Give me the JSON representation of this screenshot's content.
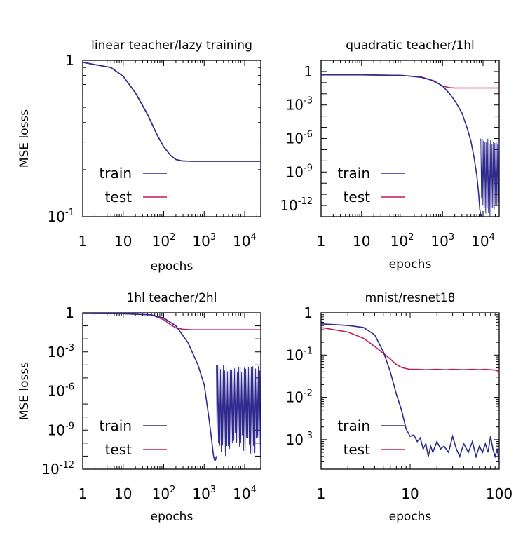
{
  "chart_data": [
    {
      "type": "line",
      "title": "linear teacher/lazy training",
      "xlabel": "epochs",
      "ylabel": "MSE losss",
      "xscale": "log",
      "yscale": "log",
      "xlim": [
        1,
        25000
      ],
      "ylim": [
        0.1,
        1
      ],
      "xticks": [
        {
          "v": 1,
          "base": "1",
          "exp": ""
        },
        {
          "v": 10,
          "base": "10",
          "exp": ""
        },
        {
          "v": 100,
          "base": "10",
          "exp": "2"
        },
        {
          "v": 1000,
          "base": "10",
          "exp": "3"
        },
        {
          "v": 10000,
          "base": "10",
          "exp": "4"
        }
      ],
      "yticks": [
        {
          "v": 1,
          "base": "1",
          "exp": ""
        },
        {
          "v": 0.1,
          "base": "10",
          "exp": "-1"
        }
      ],
      "legend": {
        "position": "bottom-left",
        "entries": [
          "train",
          "test"
        ]
      },
      "series": [
        {
          "name": "train",
          "color": "#2e2a8e",
          "x": [
            1,
            5,
            10,
            20,
            40,
            70,
            100,
            150,
            200,
            300,
            500,
            1000,
            10000,
            25000
          ],
          "y": [
            0.97,
            0.9,
            0.79,
            0.62,
            0.45,
            0.33,
            0.28,
            0.245,
            0.232,
            0.227,
            0.226,
            0.226,
            0.226,
            0.226
          ]
        },
        {
          "name": "test",
          "color": "#c01c5e",
          "x": [
            1,
            5,
            10,
            20,
            40,
            70,
            100,
            150,
            200,
            300,
            500,
            1000,
            10000,
            25000
          ],
          "y": [
            0.97,
            0.9,
            0.79,
            0.62,
            0.45,
            0.33,
            0.28,
            0.245,
            0.232,
            0.227,
            0.226,
            0.226,
            0.226,
            0.226
          ]
        }
      ]
    },
    {
      "type": "line",
      "title": "quadratic teacher/1hl",
      "xlabel": "epochs",
      "ylabel": "",
      "xscale": "log",
      "yscale": "log",
      "xlim": [
        1,
        25000
      ],
      "ylim": [
        1e-13,
        10
      ],
      "xticks": [
        {
          "v": 1,
          "base": "1",
          "exp": ""
        },
        {
          "v": 10,
          "base": "10",
          "exp": ""
        },
        {
          "v": 100,
          "base": "10",
          "exp": "2"
        },
        {
          "v": 1000,
          "base": "10",
          "exp": "3"
        },
        {
          "v": 10000,
          "base": "10",
          "exp": "4"
        }
      ],
      "yticks": [
        {
          "v": 1,
          "base": "1",
          "exp": ""
        },
        {
          "v": 0.001,
          "base": "10",
          "exp": "-3"
        },
        {
          "v": 1e-06,
          "base": "10",
          "exp": "-6"
        },
        {
          "v": 1e-09,
          "base": "10",
          "exp": "-9"
        },
        {
          "v": 1e-12,
          "base": "10",
          "exp": "-12"
        }
      ],
      "legend": {
        "position": "bottom-left",
        "entries": [
          "train",
          "test"
        ]
      },
      "series": [
        {
          "name": "train",
          "color": "#2e2a8e",
          "x": [
            1,
            10,
            100,
            300,
            600,
            1000,
            1500,
            2000,
            3000,
            4000,
            5000,
            6000,
            7000,
            7800,
            8300,
            8800
          ],
          "y": [
            0.5,
            0.5,
            0.45,
            0.3,
            0.15,
            0.05,
            0.01,
            0.0025,
            0.0002,
            1e-05,
            6e-07,
            2e-08,
            5e-10,
            1e-11,
            5e-13,
            1e-13
          ]
        },
        {
          "name": "test",
          "color": "#c01c5e",
          "x": [
            1,
            10,
            100,
            300,
            500,
            800,
            1000,
            1500,
            2000,
            3000,
            5000,
            10000,
            25000
          ],
          "y": [
            0.5,
            0.5,
            0.45,
            0.32,
            0.18,
            0.08,
            0.05,
            0.035,
            0.033,
            0.033,
            0.033,
            0.033,
            0.033
          ]
        }
      ],
      "oscillation": {
        "series": "train",
        "x_start": 8800,
        "x_end": 25000,
        "y_low": 1e-13,
        "y_high": 1e-06
      }
    },
    {
      "type": "line",
      "title": "1hl teacher/2hl",
      "xlabel": "epochs",
      "ylabel": "MSE losss",
      "xscale": "log",
      "yscale": "log",
      "xlim": [
        1,
        25000
      ],
      "ylim": [
        1e-12,
        1
      ],
      "xticks": [
        {
          "v": 1,
          "base": "1",
          "exp": ""
        },
        {
          "v": 10,
          "base": "10",
          "exp": ""
        },
        {
          "v": 100,
          "base": "10",
          "exp": "2"
        },
        {
          "v": 1000,
          "base": "10",
          "exp": "3"
        },
        {
          "v": 10000,
          "base": "10",
          "exp": "4"
        }
      ],
      "yticks": [
        {
          "v": 1,
          "base": "1",
          "exp": ""
        },
        {
          "v": 0.001,
          "base": "10",
          "exp": "-3"
        },
        {
          "v": 1e-06,
          "base": "10",
          "exp": "-6"
        },
        {
          "v": 1e-09,
          "base": "10",
          "exp": "-9"
        },
        {
          "v": 1e-12,
          "base": "10",
          "exp": "-12"
        }
      ],
      "legend": {
        "position": "bottom-left",
        "entries": [
          "train",
          "test"
        ]
      },
      "series": [
        {
          "name": "train",
          "color": "#2e2a8e",
          "x": [
            1,
            10,
            50,
            100,
            200,
            400,
            700,
            1000,
            1300,
            1500,
            1700,
            1800,
            1900,
            2000
          ],
          "y": [
            0.9,
            0.85,
            0.7,
            0.4,
            0.1,
            0.005,
            0.0001,
            3e-06,
            1e-08,
            3e-10,
            1e-11,
            5e-12,
            5e-12,
            1e-11
          ]
        },
        {
          "name": "test",
          "color": "#c01c5e",
          "x": [
            1,
            10,
            50,
            100,
            150,
            200,
            300,
            500,
            1000,
            10000,
            25000
          ],
          "y": [
            0.9,
            0.85,
            0.7,
            0.3,
            0.12,
            0.07,
            0.055,
            0.05,
            0.05,
            0.05,
            0.05
          ]
        }
      ],
      "oscillation": {
        "series": "train",
        "x_start": 2000,
        "x_end": 25000,
        "y_low": 1e-11,
        "y_high": 0.0001
      }
    },
    {
      "type": "line",
      "title": "mnist/resnet18",
      "xlabel": "epochs",
      "ylabel": "",
      "xscale": "log",
      "yscale": "log",
      "xlim": [
        1,
        100
      ],
      "ylim": [
        0.0002,
        1
      ],
      "xticks": [
        {
          "v": 1,
          "base": "1",
          "exp": ""
        },
        {
          "v": 10,
          "base": "10",
          "exp": ""
        },
        {
          "v": 100,
          "base": "100",
          "exp": ""
        }
      ],
      "yticks": [
        {
          "v": 1,
          "base": "1",
          "exp": ""
        },
        {
          "v": 0.1,
          "base": "10",
          "exp": "-1"
        },
        {
          "v": 0.01,
          "base": "10",
          "exp": "-2"
        },
        {
          "v": 0.001,
          "base": "10",
          "exp": "-3"
        }
      ],
      "legend": {
        "position": "bottom-left",
        "entries": [
          "train",
          "test"
        ]
      },
      "series": [
        {
          "name": "train",
          "color": "#2e2a8e",
          "x": [
            1,
            2,
            3,
            4,
            5,
            6,
            7,
            8,
            9,
            10,
            11,
            12,
            13,
            14,
            15,
            16,
            17,
            18,
            20,
            22,
            24,
            27,
            30,
            33,
            36,
            40,
            45,
            50,
            55,
            60,
            65,
            70,
            75,
            80,
            85,
            90,
            95,
            100
          ],
          "y": [
            0.55,
            0.5,
            0.45,
            0.3,
            0.12,
            0.04,
            0.012,
            0.005,
            0.0018,
            0.0012,
            0.0013,
            0.0009,
            0.0011,
            0.0006,
            0.0008,
            0.0004,
            0.0007,
            0.0005,
            0.0009,
            0.0006,
            0.0007,
            0.0005,
            0.0012,
            0.0006,
            0.0004,
            0.0008,
            0.0005,
            0.0009,
            0.0004,
            0.0007,
            0.0005,
            0.0008,
            0.0005,
            0.0012,
            0.0006,
            0.0004,
            0.0006,
            0.0003
          ]
        },
        {
          "name": "test",
          "color": "#c01c5e",
          "x": [
            1,
            2,
            3,
            4,
            5,
            6,
            7,
            8,
            9,
            10,
            12,
            15,
            20,
            25,
            30,
            40,
            50,
            60,
            70,
            80,
            90,
            100
          ],
          "y": [
            0.45,
            0.35,
            0.25,
            0.16,
            0.11,
            0.08,
            0.06,
            0.051,
            0.048,
            0.046,
            0.046,
            0.045,
            0.046,
            0.045,
            0.046,
            0.045,
            0.046,
            0.045,
            0.046,
            0.045,
            0.044,
            0.042
          ]
        }
      ]
    }
  ]
}
